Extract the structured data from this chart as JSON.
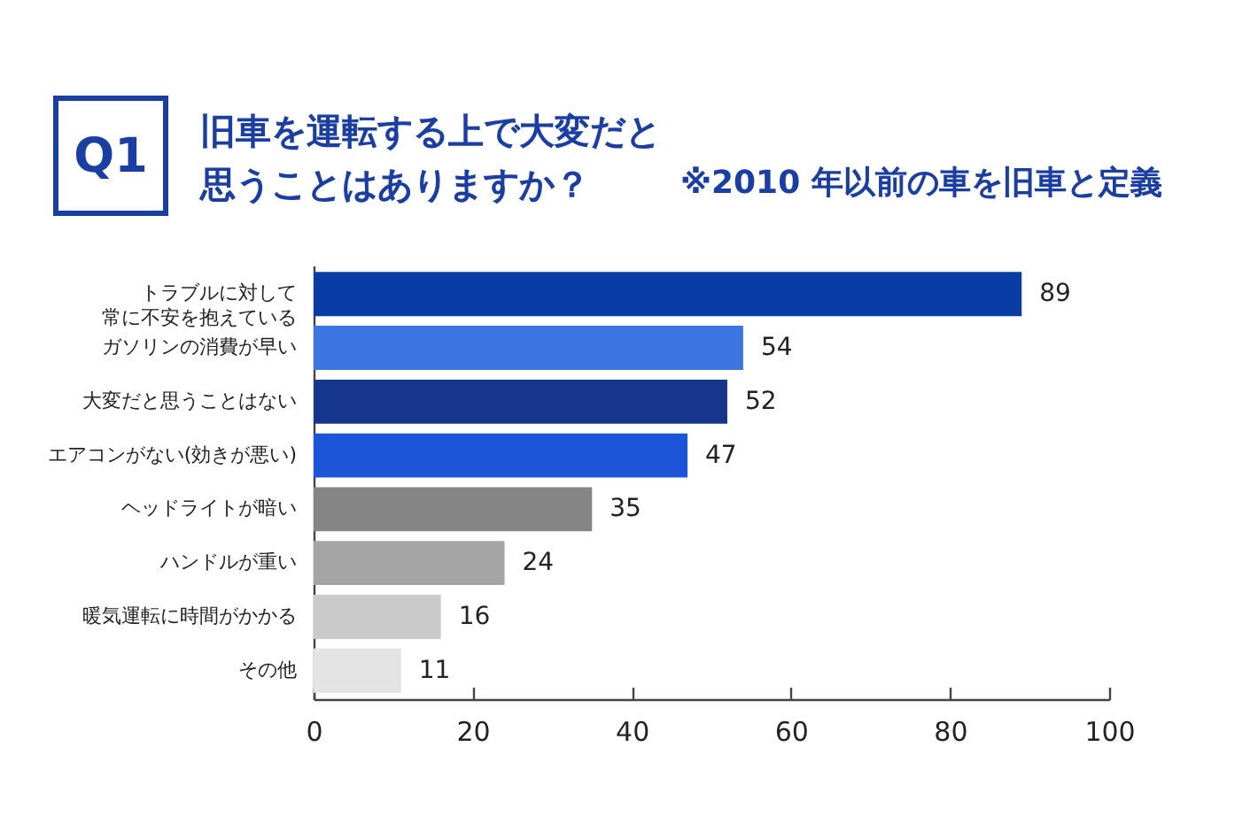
{
  "chart_data": {
    "type": "bar",
    "orientation": "horizontal",
    "title": "旧車を運転する上で大変だと思うことはありますか？",
    "subtitle": "※2010 年以前の車を旧車と定義",
    "annotations": [
      "Q1"
    ],
    "categories": [
      "トラブルに対して常に不安を抱えている",
      "ガソリンの消費が早い",
      "大変だと思うことはない",
      "エアコンがない(効きが悪い)",
      "ヘッドライトが暗い",
      "ハンドルが重い",
      "暖気運転に時間がかかる",
      "その他"
    ],
    "values": [
      89,
      54,
      52,
      47,
      35,
      24,
      16,
      11
    ],
    "colors": [
      "#0a3ca6",
      "#3b76e1",
      "#16368e",
      "#1d55d9",
      "#858585",
      "#a5a5a5",
      "#cacaca",
      "#e3e3e3"
    ],
    "xlim": [
      0,
      100
    ],
    "xticks": [
      0,
      20,
      40,
      60,
      80,
      100
    ],
    "data_labels": true,
    "grid": false,
    "legend": false
  }
}
